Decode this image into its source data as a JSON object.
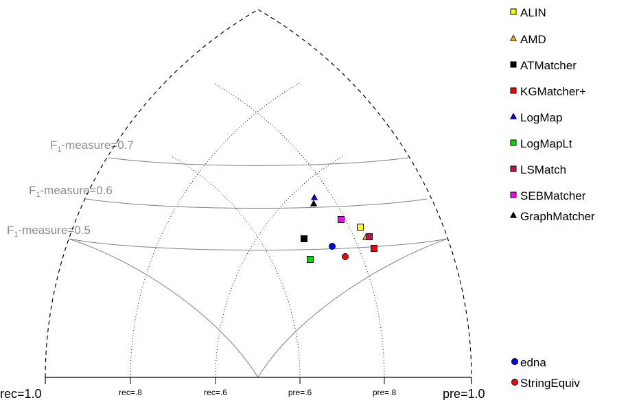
{
  "chart_data": {
    "type": "scatter",
    "corner_labels": {
      "left": "rec=1.0",
      "right": "pre=1.0"
    },
    "base_ticks": [
      {
        "label": "rec=.8",
        "value": 0.8,
        "axis": "recall"
      },
      {
        "label": "rec=.6",
        "value": 0.6,
        "axis": "recall"
      },
      {
        "label": "pre=.6",
        "value": 0.6,
        "axis": "precision"
      },
      {
        "label": "pre=.8",
        "value": 0.8,
        "axis": "precision"
      }
    ],
    "f1_curves": [
      {
        "prefix": "F",
        "sub": "1",
        "suffix": "-measure=0.5",
        "value": 0.5
      },
      {
        "prefix": "F",
        "sub": "1",
        "suffix": "-measure=0.6",
        "value": 0.6
      },
      {
        "prefix": "F",
        "sub": "1",
        "suffix": "-measure=0.7",
        "value": 0.7
      }
    ],
    "grid": true,
    "legend_position": "right",
    "series": [
      {
        "name": "ALIN",
        "marker": "square",
        "color": "#ffff00",
        "precision": 0.8,
        "recall": 0.58
      },
      {
        "name": "AMD",
        "marker": "triangle",
        "color": "#f5a623",
        "precision": 0.82,
        "recall": 0.55
      },
      {
        "name": "ATMatcher",
        "marker": "square",
        "color": "#000000",
        "precision": 0.58,
        "recall": 0.63
      },
      {
        "name": "KGMatcher+",
        "marker": "square",
        "color": "#ff0000",
        "precision": 0.84,
        "recall": 0.53
      },
      {
        "name": "LogMap",
        "marker": "triangle",
        "color": "#0000ff",
        "precision": 0.68,
        "recall": 0.71
      },
      {
        "name": "LogMapLt",
        "marker": "square",
        "color": "#00dd00",
        "precision": 0.63,
        "recall": 0.57
      },
      {
        "name": "LSMatch",
        "marker": "square",
        "color": "#c0144a",
        "precision": 0.82,
        "recall": 0.55
      },
      {
        "name": "SEBMatcher",
        "marker": "square",
        "color": "#ff00ff",
        "precision": 0.73,
        "recall": 0.63
      },
      {
        "name": "GraphMatcher",
        "marker": "triangle",
        "color": "#000000",
        "precision": 0.68,
        "recall": 0.7
      },
      {
        "name": "edna",
        "marker": "circle",
        "color": "#0000ff",
        "precision": 0.7,
        "recall": 0.56
      },
      {
        "name": "StringEquiv",
        "marker": "circle",
        "color": "#ff0000",
        "precision": 0.76,
        "recall": 0.52
      }
    ]
  }
}
